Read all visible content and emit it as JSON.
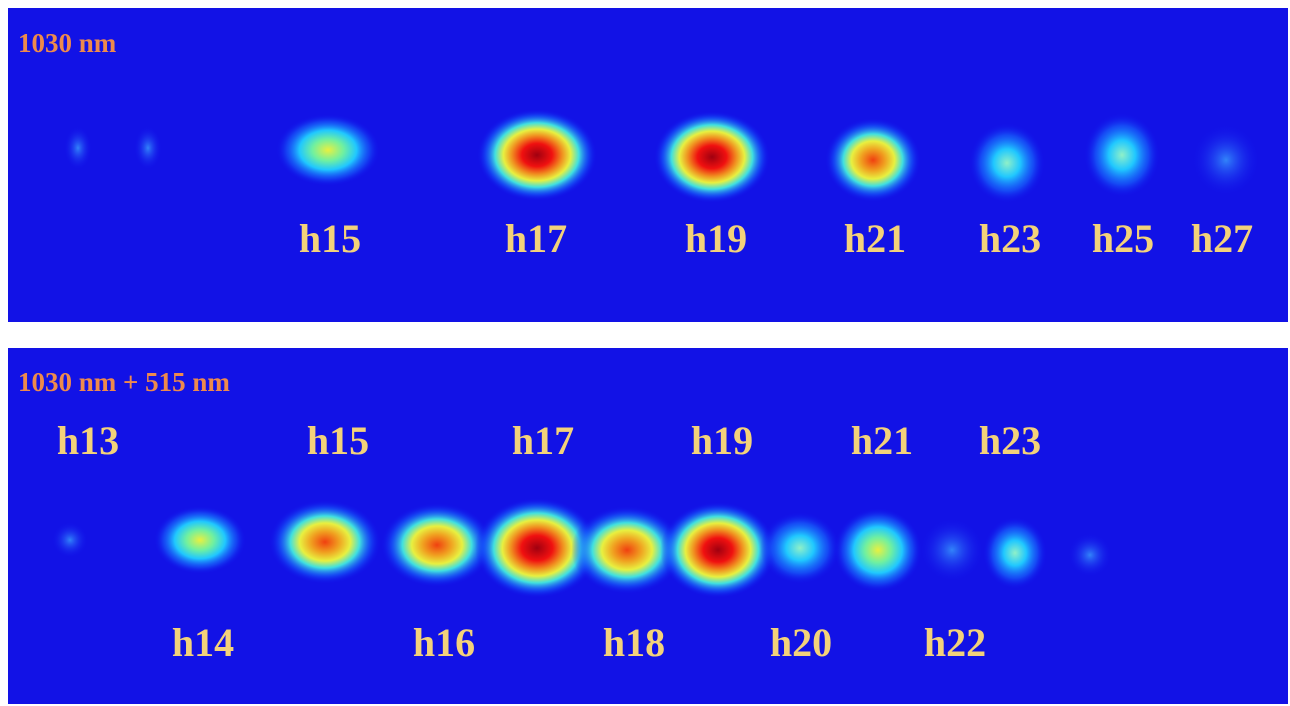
{
  "panels": [
    {
      "title": "1030 nm",
      "labels": [
        "h15",
        "h17",
        "h19",
        "h21",
        "h23",
        "h25",
        "h27"
      ]
    },
    {
      "title": "1030 nm + 515 nm",
      "top_labels": [
        "h13",
        "h15",
        "h17",
        "h19",
        "h21",
        "h23"
      ],
      "bottom_labels": [
        "h14",
        "h16",
        "h18",
        "h20",
        "h22"
      ]
    }
  ]
}
